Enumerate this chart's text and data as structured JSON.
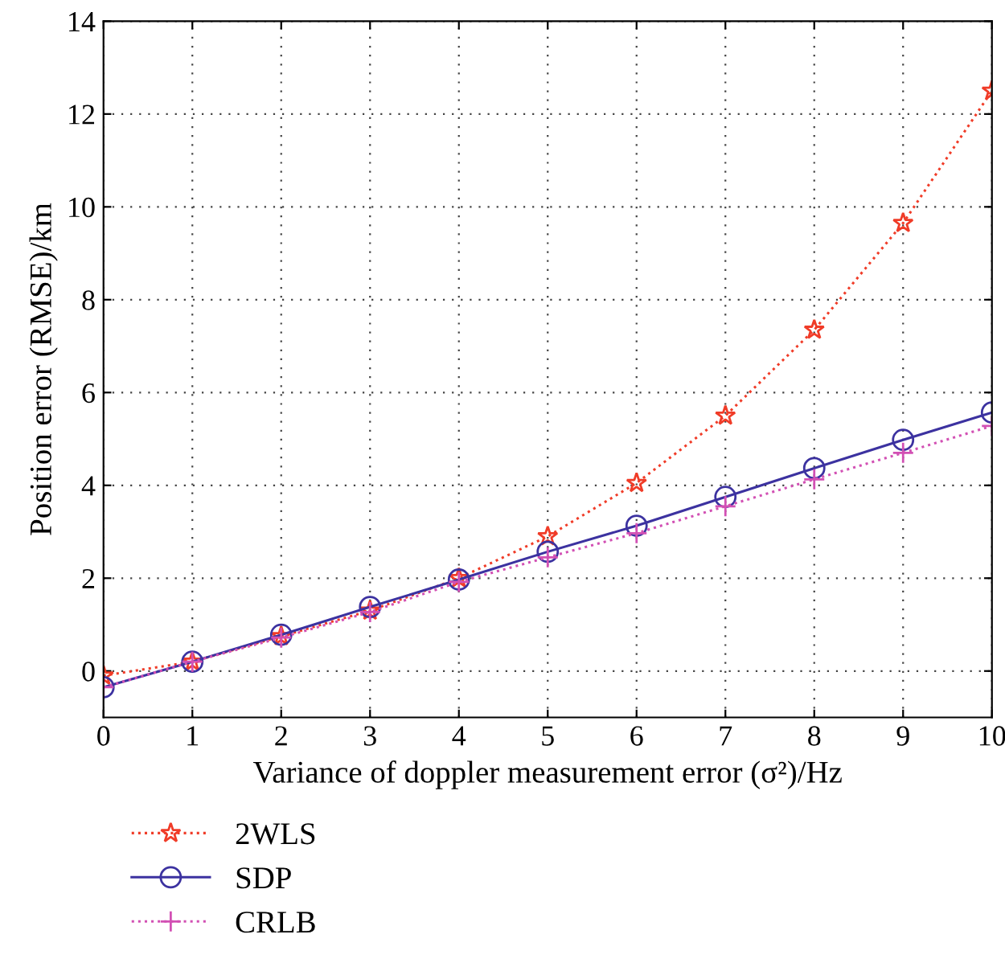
{
  "chart_data": {
    "type": "line",
    "xlabel": "Variance of doppler measurement error (σ²)/Hz",
    "ylabel": "Position error (RMSE)/km",
    "x": [
      0,
      1,
      2,
      3,
      4,
      5,
      6,
      7,
      8,
      9,
      10
    ],
    "series": [
      {
        "name": "2WLS",
        "color": "#f03c28",
        "marker": "star",
        "line_style": "dotted",
        "values": [
          -0.1,
          0.2,
          0.75,
          1.3,
          2.0,
          2.9,
          4.05,
          5.5,
          7.35,
          9.65,
          12.5
        ]
      },
      {
        "name": "SDP",
        "color": "#3c32a0",
        "marker": "circle",
        "line_style": "solid",
        "values": [
          -0.35,
          0.2,
          0.78,
          1.38,
          1.97,
          2.57,
          3.13,
          3.75,
          4.37,
          4.98,
          5.57
        ]
      },
      {
        "name": "CRLB",
        "color": "#d250b4",
        "marker": "cross",
        "line_style": "dotted",
        "values": [
          -0.35,
          0.2,
          0.72,
          1.27,
          1.92,
          2.45,
          2.97,
          3.55,
          4.13,
          4.7,
          5.28
        ]
      }
    ],
    "xlim": [
      0,
      10
    ],
    "ylim": [
      -1,
      14
    ],
    "xticks": [
      0,
      1,
      2,
      3,
      4,
      5,
      6,
      7,
      8,
      9,
      10
    ],
    "yticks": [
      0,
      2,
      4,
      6,
      8,
      10,
      12,
      14
    ],
    "grid": true,
    "legend": "bottom left"
  }
}
